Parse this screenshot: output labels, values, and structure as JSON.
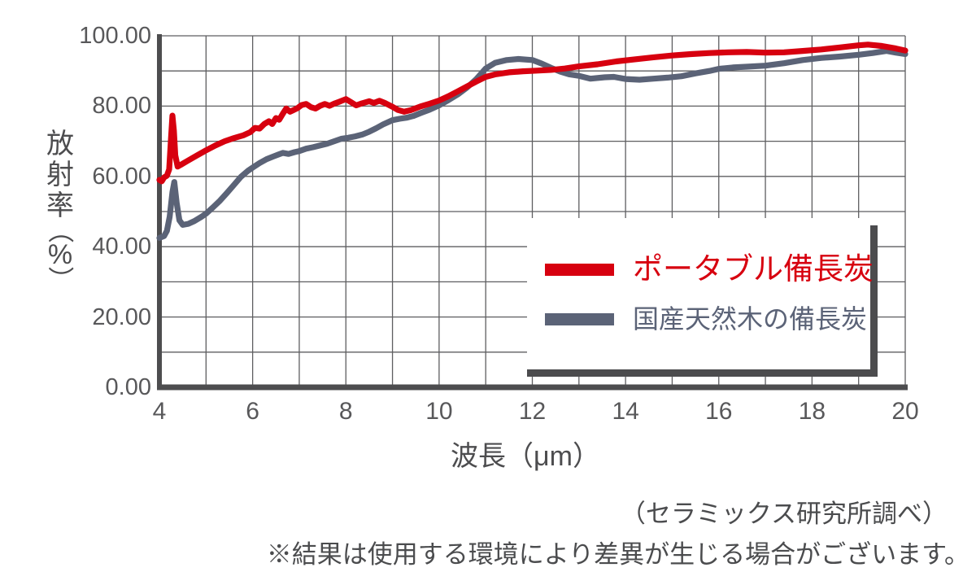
{
  "chart_data": {
    "type": "line",
    "xlabel": "波長（μm）",
    "ylabel": "放射率（%）",
    "xlim": [
      4,
      20
    ],
    "ylim": [
      0,
      100
    ],
    "x_grid_step": 1,
    "y_grid_step": 10,
    "grid": true,
    "legend_position": "inside-lower-right",
    "x_ticks": [
      {
        "value": 4,
        "label": "4"
      },
      {
        "value": 6,
        "label": "6"
      },
      {
        "value": 8,
        "label": "8"
      },
      {
        "value": 10,
        "label": "10"
      },
      {
        "value": 12,
        "label": "12"
      },
      {
        "value": 14,
        "label": "14"
      },
      {
        "value": 16,
        "label": "16"
      },
      {
        "value": 18,
        "label": "18"
      },
      {
        "value": 20,
        "label": "20"
      }
    ],
    "y_ticks": [
      {
        "value": 100,
        "label": "100.00"
      },
      {
        "value": 80,
        "label": "80.00"
      },
      {
        "value": 60,
        "label": "60.00"
      },
      {
        "value": 40,
        "label": "40.00"
      },
      {
        "value": 20,
        "label": "20.00"
      },
      {
        "value": 0,
        "label": "0.00"
      }
    ],
    "series": [
      {
        "name": "国産天然木の備長炭",
        "color": "#5b6377",
        "points": [
          [
            4,
            42.5
          ],
          [
            4.1,
            43
          ],
          [
            4.16,
            44.5
          ],
          [
            4.22,
            48.5
          ],
          [
            4.28,
            55.5
          ],
          [
            4.32,
            58.4
          ],
          [
            4.37,
            52.5
          ],
          [
            4.43,
            47.5
          ],
          [
            4.5,
            46.2
          ],
          [
            4.62,
            46.5
          ],
          [
            4.75,
            47.3
          ],
          [
            4.9,
            48.5
          ],
          [
            5,
            49.4
          ],
          [
            5.15,
            51.2
          ],
          [
            5.3,
            53.1
          ],
          [
            5.45,
            55.3
          ],
          [
            5.6,
            57.6
          ],
          [
            5.75,
            59.9
          ],
          [
            5.9,
            61.6
          ],
          [
            6,
            62.5
          ],
          [
            6.15,
            63.8
          ],
          [
            6.3,
            64.9
          ],
          [
            6.45,
            65.7
          ],
          [
            6.55,
            66.2
          ],
          [
            6.65,
            66.7
          ],
          [
            6.77,
            66.4
          ],
          [
            6.9,
            66.9
          ],
          [
            7,
            67.2
          ],
          [
            7.15,
            67.9
          ],
          [
            7.3,
            68.3
          ],
          [
            7.45,
            68.8
          ],
          [
            7.6,
            69.3
          ],
          [
            7.75,
            70
          ],
          [
            7.9,
            70.7
          ],
          [
            8.05,
            71
          ],
          [
            8.2,
            71.4
          ],
          [
            8.35,
            71.9
          ],
          [
            8.5,
            72.7
          ],
          [
            8.65,
            73.7
          ],
          [
            8.8,
            74.8
          ],
          [
            9,
            76
          ],
          [
            9.15,
            76.4
          ],
          [
            9.3,
            76.7
          ],
          [
            9.45,
            77.2
          ],
          [
            9.6,
            78
          ],
          [
            9.8,
            79
          ],
          [
            10,
            80.2
          ],
          [
            10.2,
            81.7
          ],
          [
            10.4,
            83.3
          ],
          [
            10.6,
            85.3
          ],
          [
            10.8,
            87.7
          ],
          [
            11,
            90.7
          ],
          [
            11.2,
            92.3
          ],
          [
            11.45,
            93.1
          ],
          [
            11.7,
            93.4
          ],
          [
            12,
            93.1
          ],
          [
            12.2,
            92.1
          ],
          [
            12.4,
            90.9
          ],
          [
            12.6,
            89.8
          ],
          [
            12.8,
            89
          ],
          [
            13,
            88.6
          ],
          [
            13.25,
            87.8
          ],
          [
            13.55,
            88.2
          ],
          [
            13.75,
            88.3
          ],
          [
            14,
            87.7
          ],
          [
            14.3,
            87.5
          ],
          [
            14.6,
            87.8
          ],
          [
            14.9,
            88.1
          ],
          [
            15.2,
            88.5
          ],
          [
            15.5,
            89.3
          ],
          [
            15.8,
            90
          ],
          [
            16,
            90.6
          ],
          [
            16.3,
            91
          ],
          [
            16.6,
            91.2
          ],
          [
            17,
            91.5
          ],
          [
            17.4,
            92.2
          ],
          [
            17.8,
            93.1
          ],
          [
            18.2,
            93.7
          ],
          [
            18.6,
            94.1
          ],
          [
            19,
            94.6
          ],
          [
            19.3,
            95.1
          ],
          [
            19.6,
            95.7
          ],
          [
            19.8,
            95.2
          ],
          [
            20,
            94.8
          ]
        ]
      },
      {
        "name": "ポータブル備長炭",
        "color": "#d7000f",
        "points": [
          [
            4,
            59
          ],
          [
            4.05,
            58.6
          ],
          [
            4.1,
            59.7
          ],
          [
            4.16,
            60.2
          ],
          [
            4.21,
            62
          ],
          [
            4.25,
            71
          ],
          [
            4.28,
            77.3
          ],
          [
            4.31,
            73
          ],
          [
            4.34,
            66
          ],
          [
            4.39,
            62.8
          ],
          [
            4.46,
            63.3
          ],
          [
            4.6,
            64.4
          ],
          [
            4.8,
            65.9
          ],
          [
            5,
            67.4
          ],
          [
            5.2,
            68.8
          ],
          [
            5.4,
            70
          ],
          [
            5.6,
            70.9
          ],
          [
            5.8,
            71.7
          ],
          [
            5.95,
            72.6
          ],
          [
            6.05,
            73.8
          ],
          [
            6.15,
            73.6
          ],
          [
            6.25,
            74.9
          ],
          [
            6.35,
            75.7
          ],
          [
            6.42,
            74.9
          ],
          [
            6.5,
            76.6
          ],
          [
            6.57,
            76.1
          ],
          [
            6.65,
            77.9
          ],
          [
            6.72,
            79.3
          ],
          [
            6.8,
            78.4
          ],
          [
            6.88,
            78.9
          ],
          [
            6.96,
            79.4
          ],
          [
            7.05,
            80.3
          ],
          [
            7.15,
            80.6
          ],
          [
            7.25,
            79.7
          ],
          [
            7.35,
            79.3
          ],
          [
            7.45,
            80.1
          ],
          [
            7.55,
            80.6
          ],
          [
            7.65,
            80.1
          ],
          [
            7.75,
            80.7
          ],
          [
            7.85,
            81.2
          ],
          [
            8,
            82
          ],
          [
            8.1,
            81.2
          ],
          [
            8.22,
            80.2
          ],
          [
            8.35,
            80.8
          ],
          [
            8.5,
            81.4
          ],
          [
            8.6,
            80.9
          ],
          [
            8.72,
            81.5
          ],
          [
            8.85,
            80.8
          ],
          [
            9,
            79.8
          ],
          [
            9.12,
            78.9
          ],
          [
            9.25,
            78.4
          ],
          [
            9.4,
            78.9
          ],
          [
            9.6,
            79.9
          ],
          [
            9.8,
            80.7
          ],
          [
            10,
            81.6
          ],
          [
            10.2,
            82.8
          ],
          [
            10.4,
            84.2
          ],
          [
            10.6,
            85.6
          ],
          [
            10.8,
            87
          ],
          [
            11,
            88.3
          ],
          [
            11.2,
            89
          ],
          [
            11.5,
            89.6
          ],
          [
            11.8,
            89.9
          ],
          [
            12.1,
            90.1
          ],
          [
            12.4,
            90.3
          ],
          [
            12.7,
            90.7
          ],
          [
            13,
            91.3
          ],
          [
            13.4,
            91.9
          ],
          [
            13.8,
            92.7
          ],
          [
            14.2,
            93.3
          ],
          [
            14.6,
            93.9
          ],
          [
            15,
            94.4
          ],
          [
            15.4,
            94.8
          ],
          [
            15.8,
            95.1
          ],
          [
            16.2,
            95.3
          ],
          [
            16.6,
            95.4
          ],
          [
            17,
            95.2
          ],
          [
            17.4,
            95.3
          ],
          [
            17.8,
            95.7
          ],
          [
            18.2,
            96.1
          ],
          [
            18.6,
            96.7
          ],
          [
            19,
            97.3
          ],
          [
            19.2,
            97.5
          ],
          [
            19.5,
            97.1
          ],
          [
            19.8,
            96.4
          ],
          [
            20,
            95.8
          ]
        ]
      }
    ]
  },
  "legend": {
    "entries": [
      {
        "label": "ポータブル備長炭",
        "color": "#d7000f"
      },
      {
        "label": "国産天然木の備長炭",
        "color": "#5b6377"
      }
    ]
  },
  "footer": {
    "line1": "（セラミックス研究所調べ）",
    "line2": "※結果は使用する環境により差異が生じる場合がございます。"
  },
  "colors": {
    "axis": "#4d4d4f",
    "grid": "#5e5e60",
    "tick_text": "#58585a",
    "label_text": "#4d4d4f",
    "footer_text": "#4b4c4e",
    "legend_shadow": "#4c4c4e",
    "background": "#ffffff"
  }
}
